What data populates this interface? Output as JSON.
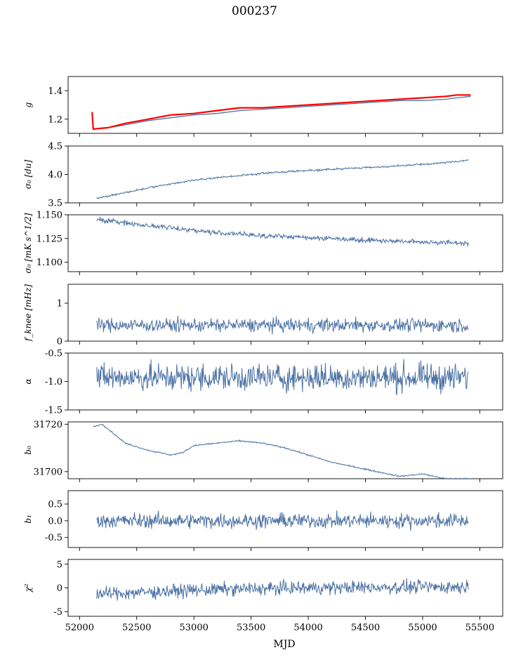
{
  "figure": {
    "title": "000237",
    "xlabel": "MJD",
    "x_range": [
      51900,
      55700
    ],
    "x_ticks": [
      "52000",
      "52500",
      "53000",
      "53500",
      "54000",
      "54500",
      "55000",
      "55500"
    ],
    "series_color": "#4c72a4",
    "highlight_color": "#ff0000"
  },
  "chart_data": [
    {
      "type": "line",
      "ylabel": "g",
      "ylim": [
        1.1,
        1.5
      ],
      "yticks": [
        "1.2",
        "1.4"
      ],
      "grid": false,
      "series": [
        {
          "color": "#4c72a4",
          "x": [
            52120,
            52250,
            52400,
            52600,
            52800,
            53000,
            53200,
            53400,
            53600,
            53800,
            54000,
            54200,
            54400,
            54600,
            54800,
            55000,
            55200,
            55300,
            55420
          ],
          "y": [
            1.13,
            1.14,
            1.16,
            1.19,
            1.21,
            1.23,
            1.24,
            1.26,
            1.27,
            1.28,
            1.29,
            1.3,
            1.31,
            1.32,
            1.33,
            1.33,
            1.34,
            1.35,
            1.36
          ]
        },
        {
          "color": "#ff0000",
          "x": [
            52110,
            52120,
            52250,
            52400,
            52600,
            52800,
            53000,
            53200,
            53400,
            53600,
            53800,
            54000,
            54200,
            54400,
            54600,
            54800,
            55000,
            55200,
            55300,
            55420
          ],
          "y": [
            1.25,
            1.13,
            1.14,
            1.17,
            1.2,
            1.23,
            1.24,
            1.26,
            1.28,
            1.28,
            1.29,
            1.3,
            1.31,
            1.32,
            1.33,
            1.34,
            1.35,
            1.36,
            1.37,
            1.37
          ]
        }
      ]
    },
    {
      "type": "line",
      "ylabel": "σ₀ [du]",
      "ylim": [
        3.5,
        4.5
      ],
      "yticks": [
        "3.5",
        "4.0",
        "4.5"
      ],
      "trend": {
        "x": [
          52150,
          52400,
          52700,
          53000,
          53300,
          53600,
          53900,
          54200,
          54500,
          54800,
          55100,
          55400
        ],
        "y": [
          3.58,
          3.68,
          3.8,
          3.9,
          3.96,
          4.02,
          4.06,
          4.09,
          4.12,
          4.15,
          4.19,
          4.25
        ]
      },
      "noise": 0.008
    },
    {
      "type": "line",
      "ylabel": "σ₀ [mK s^1/2]",
      "ylim": [
        1.09,
        1.15
      ],
      "yticks": [
        "1.100",
        "1.125",
        "1.150"
      ],
      "trend": {
        "x": [
          52150,
          52500,
          52900,
          53200,
          53600,
          54000,
          54400,
          54800,
          55100,
          55400
        ],
        "y": [
          1.145,
          1.14,
          1.135,
          1.131,
          1.128,
          1.126,
          1.124,
          1.122,
          1.121,
          1.12
        ]
      },
      "noise": 0.0013
    },
    {
      "type": "line",
      "ylabel": "f_knee [mHz]",
      "ylim": [
        0,
        1.5
      ],
      "yticks": [
        "0",
        "1"
      ],
      "trend": {
        "x": [
          52150,
          55400
        ],
        "y": [
          0.42,
          0.42
        ]
      },
      "noise": 0.09
    },
    {
      "type": "line",
      "ylabel": "α",
      "ylim": [
        -1.5,
        -0.5
      ],
      "yticks": [
        "-1.5",
        "-1.0",
        "-0.5"
      ],
      "trend": {
        "x": [
          52150,
          55400
        ],
        "y": [
          -0.93,
          -0.93
        ]
      },
      "noise": 0.12
    },
    {
      "type": "line",
      "ylabel": "b₀",
      "ylim": [
        31697,
        31721
      ],
      "yticks": [
        "31700",
        "31720"
      ],
      "trend": {
        "x": [
          52120,
          52200,
          52400,
          52600,
          52800,
          52900,
          53000,
          53200,
          53400,
          53600,
          53800,
          54000,
          54200,
          54400,
          54600,
          54800,
          55000,
          55200,
          55420
        ],
        "y": [
          31719,
          31720,
          31712,
          31709,
          31707,
          31708,
          31711,
          31712,
          31713,
          31712,
          31710,
          31707,
          31704,
          31702,
          31700,
          31698,
          31699,
          31697,
          31697
        ]
      },
      "noise": 0.15
    },
    {
      "type": "line",
      "ylabel": "b₁",
      "ylim": [
        -0.8,
        0.9
      ],
      "yticks": [
        "-0.5",
        "0.0",
        "0.5"
      ],
      "trend": {
        "x": [
          52150,
          55400
        ],
        "y": [
          0.0,
          0.0
        ]
      },
      "noise": 0.11
    },
    {
      "type": "line",
      "ylabel": "χ²",
      "ylim": [
        -6,
        6
      ],
      "yticks": [
        "-5",
        "0",
        "5"
      ],
      "trend": {
        "x": [
          52150,
          52500,
          53000,
          53500,
          54000,
          54500,
          55000,
          55400
        ],
        "y": [
          -1.3,
          -1.0,
          -0.5,
          -0.2,
          0.0,
          0.1,
          0.2,
          0.2
        ]
      },
      "noise": 0.7
    }
  ]
}
